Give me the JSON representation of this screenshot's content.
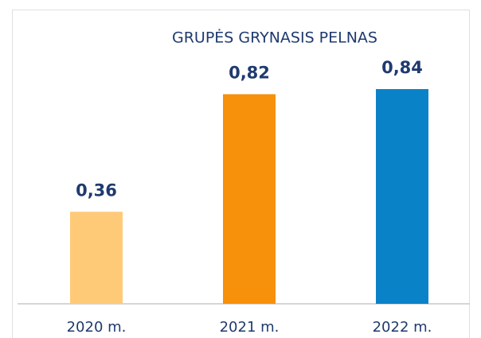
{
  "chart_data": {
    "type": "bar",
    "title": "GRUPĖS GRYNASIS PELNAS",
    "categories": [
      "2020 m.",
      "2021 m.",
      "2022 m."
    ],
    "values": [
      0.36,
      0.82,
      0.84
    ],
    "value_labels": [
      "0,36",
      "0,82",
      "0,84"
    ],
    "colors": [
      "#ffca78",
      "#f7900a",
      "#0a82c8"
    ],
    "ylim": [
      0,
      1
    ]
  }
}
